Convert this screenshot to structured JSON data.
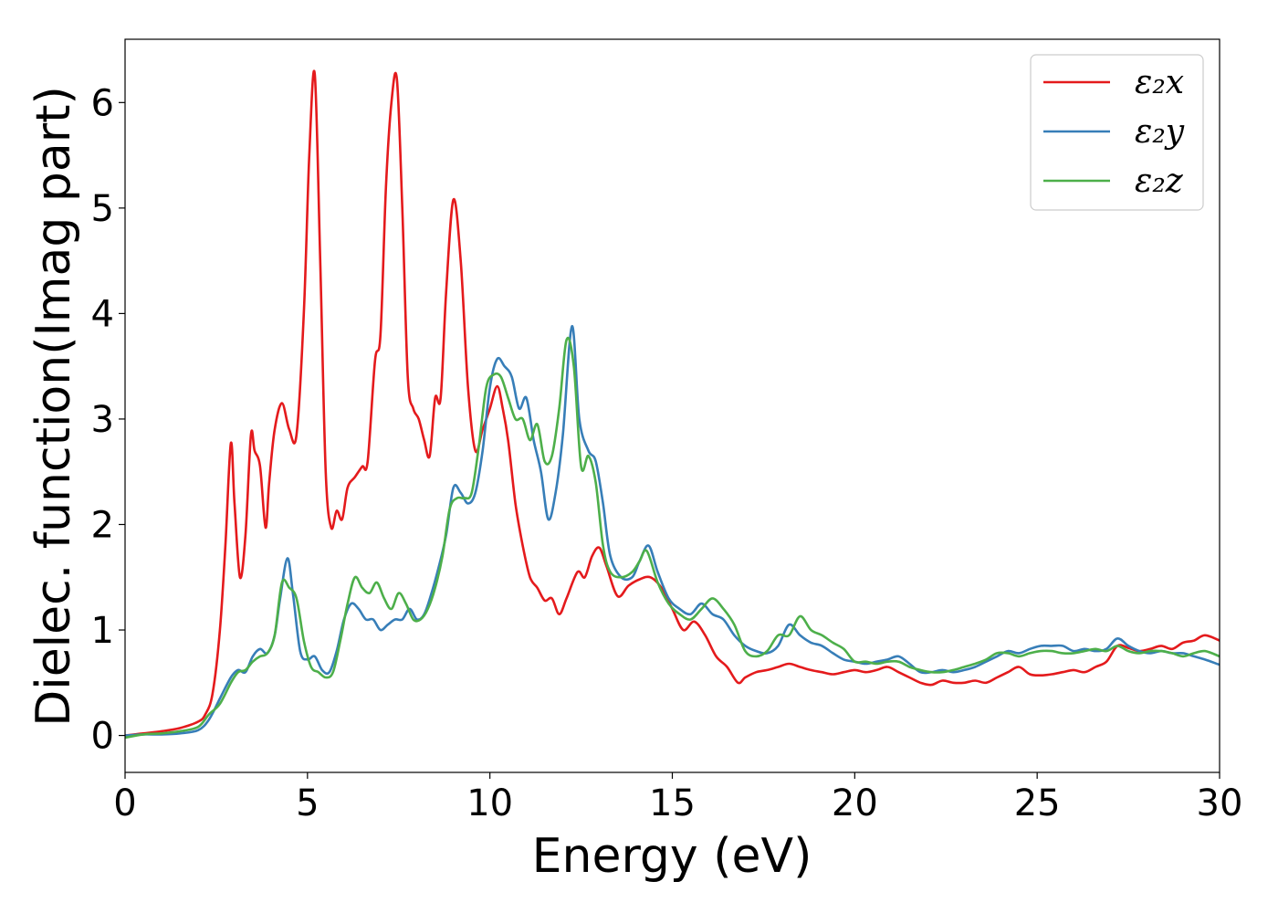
{
  "chart_data": {
    "type": "line",
    "title": "",
    "xlabel": "Energy (eV)",
    "ylabel": "Dielec. function(Imag part)",
    "xlim": [
      0,
      30
    ],
    "ylim": [
      -0.35,
      6.6
    ],
    "xticks": [
      0,
      5,
      10,
      15,
      20,
      25,
      30
    ],
    "yticks": [
      0,
      1,
      2,
      3,
      4,
      5,
      6
    ],
    "grid": false,
    "legend_position": "top-right",
    "series": [
      {
        "name": "ε₂x",
        "color": "#e41a1c",
        "x": [
          0,
          0.5,
          1,
          1.5,
          2,
          2.2,
          2.4,
          2.6,
          2.75,
          2.9,
          3.0,
          3.15,
          3.3,
          3.45,
          3.55,
          3.7,
          3.85,
          3.95,
          4.1,
          4.3,
          4.5,
          4.7,
          4.9,
          5.05,
          5.2,
          5.35,
          5.5,
          5.65,
          5.8,
          5.95,
          6.1,
          6.3,
          6.5,
          6.65,
          6.85,
          7.0,
          7.15,
          7.3,
          7.45,
          7.6,
          7.75,
          7.9,
          8.05,
          8.2,
          8.35,
          8.5,
          8.65,
          8.8,
          9.0,
          9.2,
          9.4,
          9.6,
          9.8,
          10.0,
          10.2,
          10.35,
          10.5,
          10.7,
          10.9,
          11.1,
          11.3,
          11.5,
          11.7,
          11.9,
          12.1,
          12.4,
          12.6,
          12.8,
          13.0,
          13.2,
          13.5,
          13.8,
          14.1,
          14.4,
          14.7,
          15.0,
          15.3,
          15.6,
          15.9,
          16.2,
          16.5,
          16.8,
          17.0,
          17.3,
          17.6,
          17.9,
          18.2,
          18.5,
          18.8,
          19.1,
          19.4,
          19.7,
          20.0,
          20.3,
          20.6,
          20.9,
          21.2,
          21.5,
          21.8,
          22.1,
          22.4,
          22.7,
          23.0,
          23.3,
          23.6,
          23.9,
          24.2,
          24.5,
          24.8,
          25.1,
          25.4,
          25.7,
          26.0,
          26.3,
          26.6,
          26.9,
          27.2,
          27.5,
          27.8,
          28.1,
          28.4,
          28.7,
          29.0,
          29.3,
          29.6,
          30.0
        ],
        "y": [
          0,
          0.02,
          0.04,
          0.07,
          0.13,
          0.2,
          0.4,
          1.0,
          1.8,
          2.77,
          2.2,
          1.5,
          1.9,
          2.85,
          2.7,
          2.55,
          1.97,
          2.4,
          2.9,
          3.15,
          2.9,
          2.85,
          4.0,
          5.5,
          6.27,
          4.5,
          2.5,
          1.97,
          2.13,
          2.05,
          2.35,
          2.45,
          2.55,
          2.6,
          3.55,
          3.8,
          5.2,
          6.0,
          6.22,
          5.0,
          3.4,
          3.1,
          3.0,
          2.8,
          2.65,
          3.2,
          3.2,
          4.2,
          5.08,
          4.5,
          3.3,
          2.7,
          2.9,
          3.1,
          3.31,
          3.1,
          2.8,
          2.2,
          1.8,
          1.5,
          1.4,
          1.28,
          1.3,
          1.15,
          1.3,
          1.55,
          1.5,
          1.7,
          1.78,
          1.6,
          1.32,
          1.42,
          1.48,
          1.5,
          1.4,
          1.2,
          1.0,
          1.08,
          0.95,
          0.75,
          0.65,
          0.5,
          0.55,
          0.6,
          0.62,
          0.65,
          0.68,
          0.65,
          0.62,
          0.6,
          0.58,
          0.6,
          0.62,
          0.6,
          0.62,
          0.65,
          0.6,
          0.55,
          0.5,
          0.48,
          0.52,
          0.5,
          0.5,
          0.52,
          0.5,
          0.55,
          0.6,
          0.65,
          0.58,
          0.57,
          0.58,
          0.6,
          0.62,
          0.6,
          0.65,
          0.7,
          0.85,
          0.83,
          0.8,
          0.82,
          0.85,
          0.82,
          0.88,
          0.9,
          0.95,
          0.9
        ]
      },
      {
        "name": "ε₂y",
        "color": "#377eb8",
        "x": [
          0,
          0.5,
          1,
          1.5,
          2,
          2.3,
          2.6,
          2.9,
          3.1,
          3.3,
          3.5,
          3.7,
          3.9,
          4.1,
          4.25,
          4.45,
          4.6,
          4.8,
          5.0,
          5.2,
          5.4,
          5.6,
          5.8,
          6.0,
          6.2,
          6.4,
          6.6,
          6.8,
          7.0,
          7.2,
          7.4,
          7.6,
          7.8,
          8.0,
          8.2,
          8.4,
          8.6,
          8.8,
          9.0,
          9.2,
          9.4,
          9.6,
          9.8,
          10.0,
          10.2,
          10.4,
          10.6,
          10.8,
          11.0,
          11.2,
          11.4,
          11.6,
          11.8,
          12.0,
          12.25,
          12.45,
          12.7,
          12.9,
          13.1,
          13.3,
          13.6,
          13.9,
          14.1,
          14.35,
          14.6,
          14.9,
          15.2,
          15.5,
          15.8,
          16.1,
          16.4,
          16.7,
          17.0,
          17.3,
          17.6,
          17.9,
          18.2,
          18.5,
          18.8,
          19.1,
          19.4,
          19.7,
          20.0,
          20.3,
          20.6,
          20.9,
          21.2,
          21.5,
          21.8,
          22.1,
          22.4,
          22.7,
          23.0,
          23.3,
          23.6,
          23.9,
          24.2,
          24.5,
          24.8,
          25.1,
          25.4,
          25.7,
          26.0,
          26.3,
          26.6,
          26.9,
          27.2,
          27.5,
          27.8,
          28.1,
          28.4,
          28.7,
          29.0,
          29.3,
          29.6,
          30.0
        ],
        "y": [
          0,
          0.01,
          0.01,
          0.02,
          0.05,
          0.15,
          0.35,
          0.55,
          0.62,
          0.6,
          0.75,
          0.82,
          0.78,
          0.95,
          1.3,
          1.68,
          1.35,
          0.8,
          0.72,
          0.75,
          0.62,
          0.6,
          0.8,
          1.1,
          1.25,
          1.2,
          1.1,
          1.1,
          1.0,
          1.05,
          1.1,
          1.1,
          1.2,
          1.1,
          1.15,
          1.35,
          1.6,
          1.9,
          2.35,
          2.3,
          2.2,
          2.3,
          2.7,
          3.3,
          3.57,
          3.5,
          3.4,
          3.1,
          3.2,
          2.8,
          2.5,
          2.05,
          2.3,
          2.85,
          3.88,
          3.0,
          2.7,
          2.6,
          2.2,
          1.7,
          1.5,
          1.5,
          1.65,
          1.8,
          1.55,
          1.3,
          1.2,
          1.15,
          1.25,
          1.15,
          1.1,
          0.95,
          0.85,
          0.8,
          0.78,
          0.85,
          1.05,
          0.95,
          0.88,
          0.85,
          0.78,
          0.72,
          0.7,
          0.68,
          0.7,
          0.72,
          0.75,
          0.68,
          0.6,
          0.6,
          0.62,
          0.6,
          0.62,
          0.65,
          0.7,
          0.75,
          0.8,
          0.78,
          0.82,
          0.85,
          0.85,
          0.85,
          0.8,
          0.82,
          0.8,
          0.82,
          0.92,
          0.85,
          0.8,
          0.78,
          0.8,
          0.78,
          0.78,
          0.75,
          0.72,
          0.67
        ]
      },
      {
        "name": "ε₂z",
        "color": "#4daf4a",
        "x": [
          0,
          0.5,
          1,
          1.5,
          2,
          2.3,
          2.6,
          2.9,
          3.1,
          3.3,
          3.5,
          3.7,
          3.9,
          4.1,
          4.3,
          4.5,
          4.7,
          4.9,
          5.1,
          5.3,
          5.5,
          5.7,
          5.9,
          6.1,
          6.3,
          6.5,
          6.7,
          6.9,
          7.1,
          7.3,
          7.5,
          7.7,
          7.9,
          8.1,
          8.3,
          8.5,
          8.7,
          8.9,
          9.1,
          9.3,
          9.5,
          9.7,
          9.9,
          10.1,
          10.3,
          10.5,
          10.7,
          10.9,
          11.1,
          11.3,
          11.5,
          11.7,
          11.9,
          12.1,
          12.3,
          12.5,
          12.7,
          12.9,
          13.1,
          13.3,
          13.6,
          13.9,
          14.1,
          14.3,
          14.6,
          14.9,
          15.2,
          15.5,
          15.8,
          16.1,
          16.4,
          16.7,
          17.0,
          17.3,
          17.6,
          17.9,
          18.2,
          18.5,
          18.8,
          19.1,
          19.4,
          19.7,
          20.0,
          20.3,
          20.6,
          20.9,
          21.2,
          21.5,
          21.8,
          22.1,
          22.4,
          22.7,
          23.0,
          23.3,
          23.6,
          23.9,
          24.2,
          24.5,
          24.8,
          25.1,
          25.4,
          25.7,
          26.0,
          26.3,
          26.6,
          26.9,
          27.2,
          27.5,
          27.8,
          28.1,
          28.4,
          28.7,
          29.0,
          29.3,
          29.6,
          30.0
        ],
        "y": [
          -0.02,
          0.01,
          0.02,
          0.04,
          0.08,
          0.2,
          0.3,
          0.5,
          0.6,
          0.62,
          0.7,
          0.75,
          0.78,
          0.95,
          1.45,
          1.4,
          1.3,
          0.9,
          0.65,
          0.6,
          0.55,
          0.6,
          0.9,
          1.25,
          1.5,
          1.4,
          1.35,
          1.45,
          1.3,
          1.2,
          1.35,
          1.25,
          1.1,
          1.1,
          1.2,
          1.4,
          1.7,
          2.15,
          2.25,
          2.25,
          2.3,
          2.75,
          3.3,
          3.42,
          3.4,
          3.2,
          3.0,
          3.0,
          2.8,
          2.95,
          2.6,
          2.65,
          3.1,
          3.75,
          3.5,
          2.55,
          2.65,
          2.4,
          1.8,
          1.55,
          1.5,
          1.55,
          1.65,
          1.75,
          1.45,
          1.25,
          1.15,
          1.1,
          1.2,
          1.3,
          1.2,
          1.05,
          0.8,
          0.75,
          0.8,
          0.95,
          0.95,
          1.13,
          1.0,
          0.95,
          0.88,
          0.82,
          0.7,
          0.7,
          0.68,
          0.7,
          0.7,
          0.65,
          0.62,
          0.6,
          0.6,
          0.62,
          0.65,
          0.68,
          0.72,
          0.78,
          0.78,
          0.75,
          0.78,
          0.8,
          0.8,
          0.78,
          0.78,
          0.8,
          0.82,
          0.8,
          0.85,
          0.8,
          0.78,
          0.8,
          0.8,
          0.78,
          0.75,
          0.78,
          0.8,
          0.75
        ]
      }
    ]
  }
}
